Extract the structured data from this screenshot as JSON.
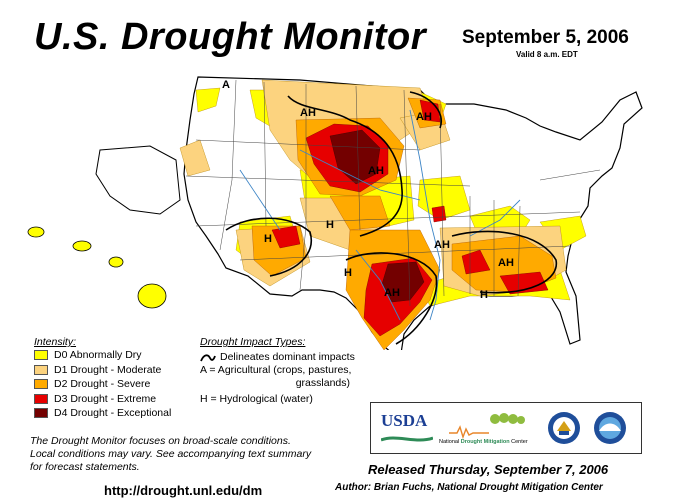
{
  "header": {
    "title": "U.S. Drought Monitor",
    "date": "September 5, 2006",
    "valid": "Valid 8 a.m. EDT"
  },
  "legend": {
    "intensity_title": "Intensity:",
    "items": [
      {
        "label": "D0 Abnormally Dry",
        "color": "#ffff00"
      },
      {
        "label": "D1 Drought - Moderate",
        "color": "#fcd37f"
      },
      {
        "label": "D2 Drought - Severe",
        "color": "#ffaa00"
      },
      {
        "label": "D3 Drought - Extreme",
        "color": "#e60000"
      },
      {
        "label": "D4 Drought - Exceptional",
        "color": "#730000"
      }
    ],
    "impact_title": "Drought Impact Types:",
    "impact_boundary": "Delineates dominant impacts",
    "impact_a_1": "A = Agricultural (crops, pastures,",
    "impact_a_2": "grasslands)",
    "impact_h": "H = Hydrological (water)"
  },
  "map_labels": [
    "A",
    "AH",
    "AH",
    "AH",
    "H",
    "H",
    "H",
    "AH",
    "AH",
    "AH",
    "H"
  ],
  "logos": {
    "usda": "USDA",
    "ndmc_1": "National",
    "ndmc_2": "Drought Mitigation",
    "ndmc_3": "Center"
  },
  "footer": {
    "note_1": "The Drought Monitor focuses on broad-scale conditions.",
    "note_2": "Local conditions may vary. See accompanying text summary",
    "note_3": "for forecast statements.",
    "url": "http://drought.unl.edu/dm",
    "released": "Released Thursday, September 7, 2006",
    "author": "Author: Brian Fuchs, National Drought Mitigation Center"
  }
}
